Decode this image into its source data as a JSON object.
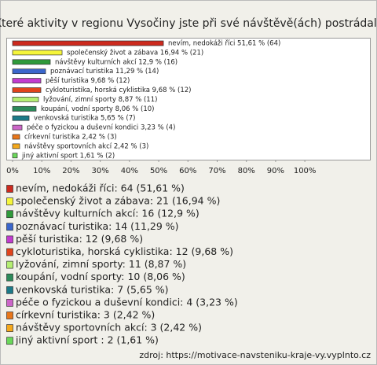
{
  "chart_data": {
    "type": "bar",
    "orientation": "horizontal",
    "title": "Které aktivity v regionu Vysočiny jste při své návštěvě(ách) postrádal?",
    "categories": [
      "nevím, nedokáži říci",
      "společenský život a zábava",
      "návštěvy kulturních akcí",
      "poznávací turistika",
      "pěší turistika",
      "cykloturistika, horská cyklistika",
      "lyžování, zimní sporty",
      "koupání, vodní sporty",
      "venkovská turistika",
      "péče o fyzickou a duševní kondici",
      "církevní turistika",
      "návštěvy sportovních akcí",
      "jiný aktivní sport"
    ],
    "values": [
      51.61,
      16.94,
      12.9,
      11.29,
      9.68,
      9.68,
      8.87,
      8.06,
      5.65,
      3.23,
      2.42,
      2.42,
      1.61
    ],
    "value_labels": [
      "nevím, nedokáži říci 51,61 % (64)",
      "společenský život a zábava 16,94 % (21)",
      "návštěvy kulturních akcí 12,9 % (16)",
      "poznávací turistika 11,29 % (14)",
      "pěší turistika 9,68 % (12)",
      "cykloturistika, horská cyklistika 9,68 % (12)",
      "lyžování, zimní sporty 8,87 % (11)",
      "koupání, vodní sporty 8,06 % (10)",
      "venkovská turistika 5,65 % (7)",
      "péče o fyzickou a duševní kondici 3,23 % (4)",
      "církevní turistika 2,42 % (3)",
      "návštěvy sportovních akcí 2,42 % (3)",
      "jiný aktivní sport 1,61 % (2)"
    ],
    "legend": [
      "nevím, nedokáži říci: 64 (51,61 %)",
      "společenský život a zábava: 21 (16,94 %)",
      "návštěvy kulturních akcí: 16 (12,9 %)",
      "poznávací turistika: 14 (11,29 %)",
      "pěší turistika: 12 (9,68 %)",
      "cykloturistika, horská cyklistika: 12 (9,68 %)",
      "lyžování, zimní sporty: 11 (8,87 %)",
      "koupání, vodní sporty: 10 (8,06 %)",
      "venkovská turistika: 7 (5,65 %)",
      "péče o fyzickou a duševní kondici: 4 (3,23 %)",
      "církevní turistika: 3 (2,42 %)",
      "návštěvy sportovních akcí: 3 (2,42 %)",
      "jiný aktivní sport : 2 (1,61 %)"
    ],
    "colors": [
      "#cc2a1e",
      "#f5f53a",
      "#2f9a3a",
      "#3a66cc",
      "#c23ccf",
      "#e0441c",
      "#b4ee72",
      "#2c8a5a",
      "#1c7a88",
      "#cc66c8",
      "#e8761a",
      "#f4a81c",
      "#6ad85a"
    ],
    "xlim": [
      0,
      122
    ],
    "xticks": [
      {
        "value": 0,
        "label": "0%"
      },
      {
        "value": 10,
        "label": "10%"
      },
      {
        "value": 20,
        "label": "20%"
      },
      {
        "value": 30,
        "label": "30%"
      },
      {
        "value": 40,
        "label": "40%"
      },
      {
        "value": 50,
        "label": "50%"
      },
      {
        "value": 60,
        "label": "60%"
      },
      {
        "value": 70,
        "label": "70%"
      },
      {
        "value": 80,
        "label": "80%"
      },
      {
        "value": 90,
        "label": "90%"
      },
      {
        "value": 100,
        "label": "100%"
      }
    ],
    "source": "zdroj: https://motivace-navsteniku-kraje-vy.vyplnto.cz"
  }
}
